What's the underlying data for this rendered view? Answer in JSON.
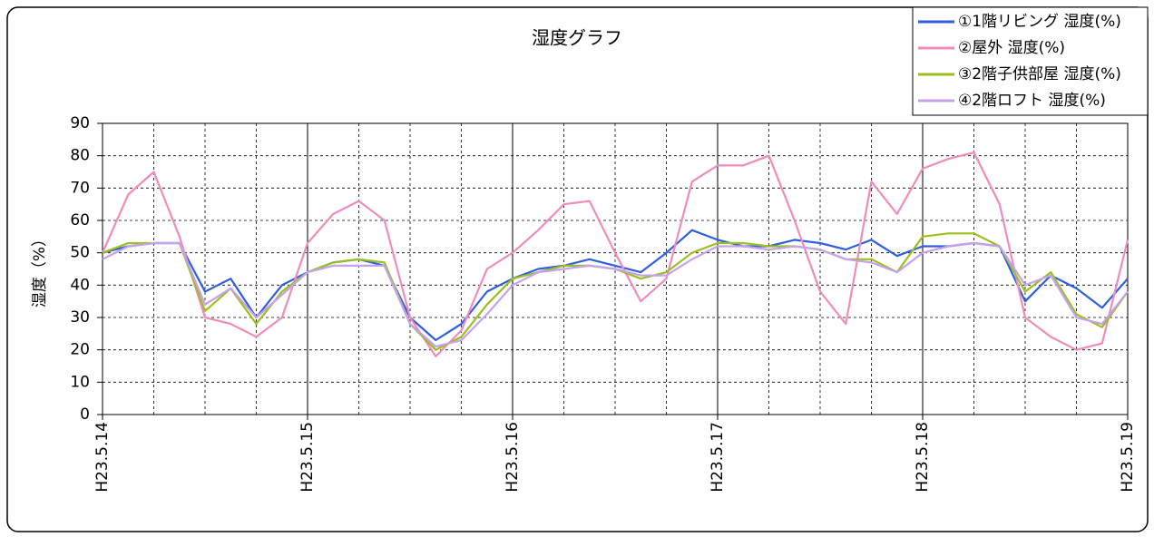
{
  "chart_data": {
    "type": "line",
    "title": "湿度グラフ",
    "y_label": "湿度（%）",
    "x": [
      0,
      0.125,
      0.25,
      0.375,
      0.5,
      0.625,
      0.75,
      0.875,
      1,
      1.125,
      1.25,
      1.375,
      1.5,
      1.625,
      1.75,
      1.875,
      2,
      2.125,
      2.25,
      2.375,
      2.5,
      2.625,
      2.75,
      2.875,
      3,
      3.125,
      3.25,
      3.375,
      3.5,
      3.625,
      3.75,
      3.875,
      4,
      4.125,
      4.25,
      4.375,
      4.5,
      4.625,
      4.75,
      4.875,
      5
    ],
    "xlim": [
      0,
      5
    ],
    "xticks": [
      {
        "value": 0,
        "label": "H23.5.14"
      },
      {
        "value": 1,
        "label": "H23.5.15"
      },
      {
        "value": 2,
        "label": "H23.5.16"
      },
      {
        "value": 3,
        "label": "H23.5.17"
      },
      {
        "value": 4,
        "label": "H23.5.18"
      },
      {
        "value": 5,
        "label": "H23.5.19"
      }
    ],
    "ylim": [
      0,
      90
    ],
    "yticks": [
      0,
      10,
      20,
      30,
      40,
      50,
      60,
      70,
      80,
      90
    ],
    "grid": true,
    "legend": "top-right",
    "series": [
      {
        "name": "①1階リビング 湿度(%)",
        "color": "#2f5fe0",
        "values": [
          50,
          52,
          53,
          53,
          38,
          42,
          30,
          40,
          44,
          47,
          48,
          46,
          30,
          23,
          28,
          38,
          42,
          45,
          46,
          48,
          46,
          44,
          50,
          57,
          54,
          52,
          52,
          54,
          53,
          51,
          54,
          49,
          52,
          52,
          53,
          52,
          35,
          43,
          39,
          33,
          42
        ]
      },
      {
        "name": "②屋外 湿度(%)",
        "color": "#f08cbc",
        "values": [
          50,
          68,
          75,
          55,
          30,
          28,
          24,
          30,
          53,
          62,
          66,
          60,
          30,
          18,
          26,
          45,
          50,
          57,
          65,
          66,
          50,
          35,
          42,
          72,
          77,
          77,
          80,
          60,
          38,
          28,
          72,
          62,
          76,
          79,
          81,
          65,
          30,
          24,
          20,
          22,
          54
        ]
      },
      {
        "name": "③2階子供部屋 湿度(%)",
        "color": "#9ac01c",
        "values": [
          50,
          53,
          53,
          53,
          32,
          39,
          28,
          38,
          44,
          47,
          48,
          47,
          28,
          20,
          24,
          34,
          42,
          44,
          46,
          46,
          45,
          42,
          44,
          50,
          53,
          53,
          52,
          52,
          51,
          48,
          48,
          44,
          55,
          56,
          56,
          52,
          38,
          44,
          31,
          27,
          38
        ]
      },
      {
        "name": "④2階ロフト 湿度(%)",
        "color": "#c7a0ee",
        "values": [
          48,
          52,
          53,
          53,
          34,
          39,
          30,
          37,
          44,
          46,
          46,
          46,
          28,
          21,
          23,
          31,
          40,
          44,
          45,
          46,
          45,
          43,
          43,
          48,
          52,
          52,
          51,
          52,
          51,
          48,
          47,
          44,
          50,
          52,
          53,
          52,
          40,
          43,
          30,
          28,
          38
        ]
      }
    ]
  }
}
